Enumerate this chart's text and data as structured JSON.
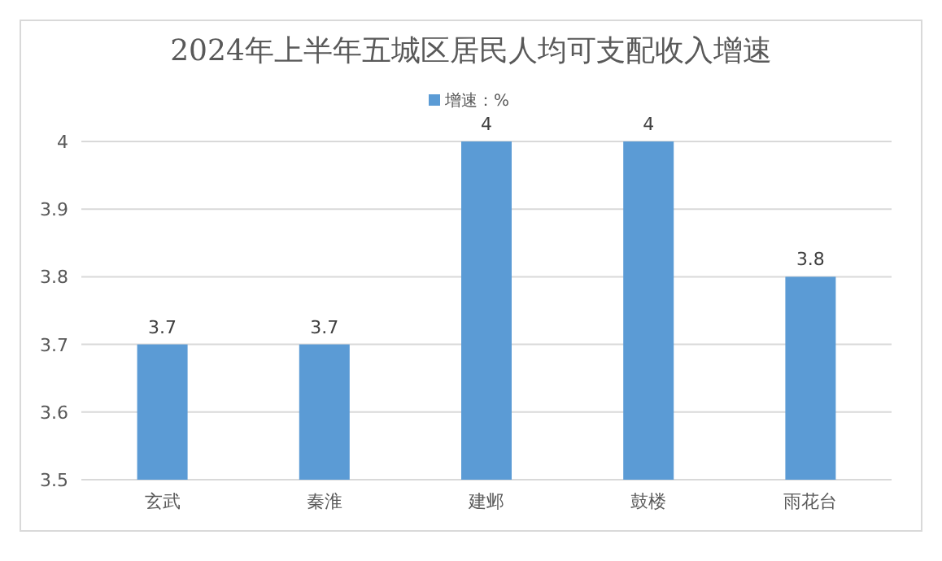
{
  "chart_data": {
    "type": "bar",
    "title": "2024年上半年五城区居民人均可支配收入增速",
    "categories": [
      "玄武",
      "秦淮",
      "建邺",
      "鼓楼",
      "雨花台"
    ],
    "series": [
      {
        "name": "增速：%",
        "color": "#5b9bd5",
        "values": [
          3.7,
          3.7,
          4,
          4,
          3.8
        ]
      }
    ],
    "ylim": [
      3.5,
      4
    ],
    "yticks": [
      3.5,
      3.6,
      3.7,
      3.8,
      3.9,
      4
    ],
    "grid": "y",
    "legend": "top",
    "data_labels": true
  }
}
